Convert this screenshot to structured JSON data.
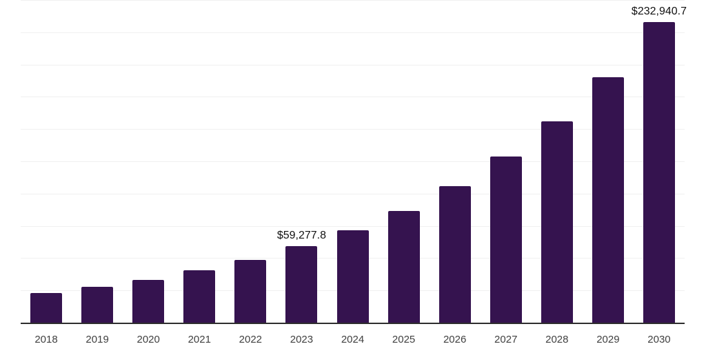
{
  "chart_data": {
    "type": "bar",
    "title": "",
    "xlabel": "",
    "ylabel": "",
    "categories": [
      "2018",
      "2019",
      "2020",
      "2021",
      "2022",
      "2023",
      "2024",
      "2025",
      "2026",
      "2027",
      "2028",
      "2029",
      "2030"
    ],
    "values": [
      23200,
      27900,
      33200,
      40400,
      48800,
      59277.8,
      71800,
      86500,
      105900,
      128900,
      156000,
      190300,
      232940.7
    ],
    "bar_labels": [
      "",
      "",
      "",
      "",
      "",
      "$59,277.8",
      "",
      "",
      "",
      "",
      "",
      "",
      "$232,940.7"
    ],
    "ylim": [
      0,
      250000
    ],
    "gridline_step": 25000,
    "grid": true,
    "legend": false,
    "y_axis_ticks_visible": false,
    "colors": {
      "bar": "#35134f",
      "axis_line": "#2e2e2e",
      "gridline": "#f0f0f0",
      "tick_label": "#404040",
      "data_label": "#111111",
      "background": "#ffffff"
    }
  }
}
